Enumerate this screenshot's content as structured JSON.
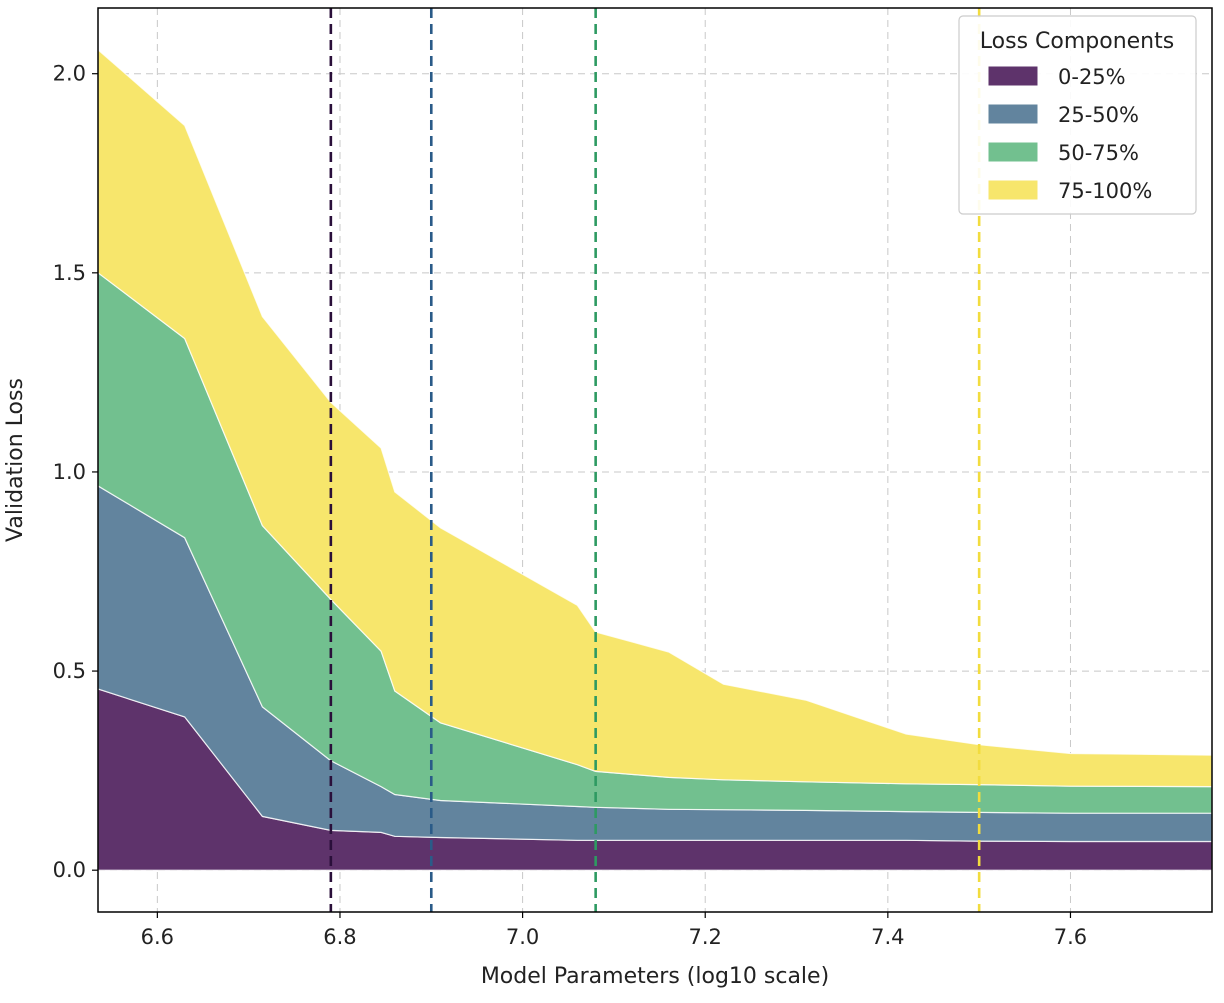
{
  "chart_data": {
    "type": "area",
    "stacked": true,
    "title": "",
    "xlabel": "Model Parameters (log10 scale)",
    "ylabel": "Validation Loss",
    "xlim": [
      6.535,
      7.755
    ],
    "ylim": [
      -0.105,
      2.165
    ],
    "x_scale": "linear",
    "grid": true,
    "x_ticks": [
      6.6,
      6.8,
      7.0,
      7.2,
      7.4,
      7.6
    ],
    "y_ticks": [
      0.0,
      0.5,
      1.0,
      1.5,
      2.0
    ],
    "x_tick_labels": [
      "6.6",
      "6.8",
      "7.0",
      "7.2",
      "7.4",
      "7.6"
    ],
    "y_tick_labels": [
      "0.0",
      "0.5",
      "1.0",
      "1.5",
      "2.0"
    ],
    "x": [
      6.535,
      6.63,
      6.715,
      6.79,
      6.845,
      6.86,
      6.91,
      7.06,
      7.08,
      7.16,
      7.22,
      7.31,
      7.42,
      7.5,
      7.6,
      7.755
    ],
    "series": [
      {
        "name": "0-25%",
        "color": "#5e336b",
        "values": [
          0.455,
          0.385,
          0.135,
          0.1,
          0.095,
          0.085,
          0.082,
          0.075,
          0.075,
          0.075,
          0.075,
          0.075,
          0.075,
          0.073,
          0.072,
          0.072
        ]
      },
      {
        "name": "25-50%",
        "color": "#62849e",
        "values": [
          0.51,
          0.45,
          0.275,
          0.175,
          0.115,
          0.105,
          0.093,
          0.085,
          0.083,
          0.078,
          0.077,
          0.075,
          0.072,
          0.072,
          0.071,
          0.071
        ]
      },
      {
        "name": "50-75%",
        "color": "#72c08f",
        "values": [
          0.535,
          0.5,
          0.455,
          0.405,
          0.34,
          0.26,
          0.195,
          0.105,
          0.09,
          0.08,
          0.075,
          0.072,
          0.07,
          0.07,
          0.068,
          0.067
        ]
      },
      {
        "name": "75-100%",
        "color": "#f7e66c",
        "values": [
          0.56,
          0.535,
          0.525,
          0.495,
          0.51,
          0.5,
          0.49,
          0.4,
          0.35,
          0.315,
          0.24,
          0.205,
          0.125,
          0.1,
          0.082,
          0.079
        ]
      }
    ],
    "vlines": [
      {
        "x": 6.79,
        "color": "#2a0f3a"
      },
      {
        "x": 6.9,
        "color": "#2a5b88"
      },
      {
        "x": 7.08,
        "color": "#2e9a62"
      },
      {
        "x": 7.5,
        "color": "#f2dc3e"
      }
    ],
    "legend": {
      "title": "Loss Components",
      "position": "upper right",
      "items": [
        "0-25%",
        "25-50%",
        "50-75%",
        "75-100%"
      ]
    }
  }
}
